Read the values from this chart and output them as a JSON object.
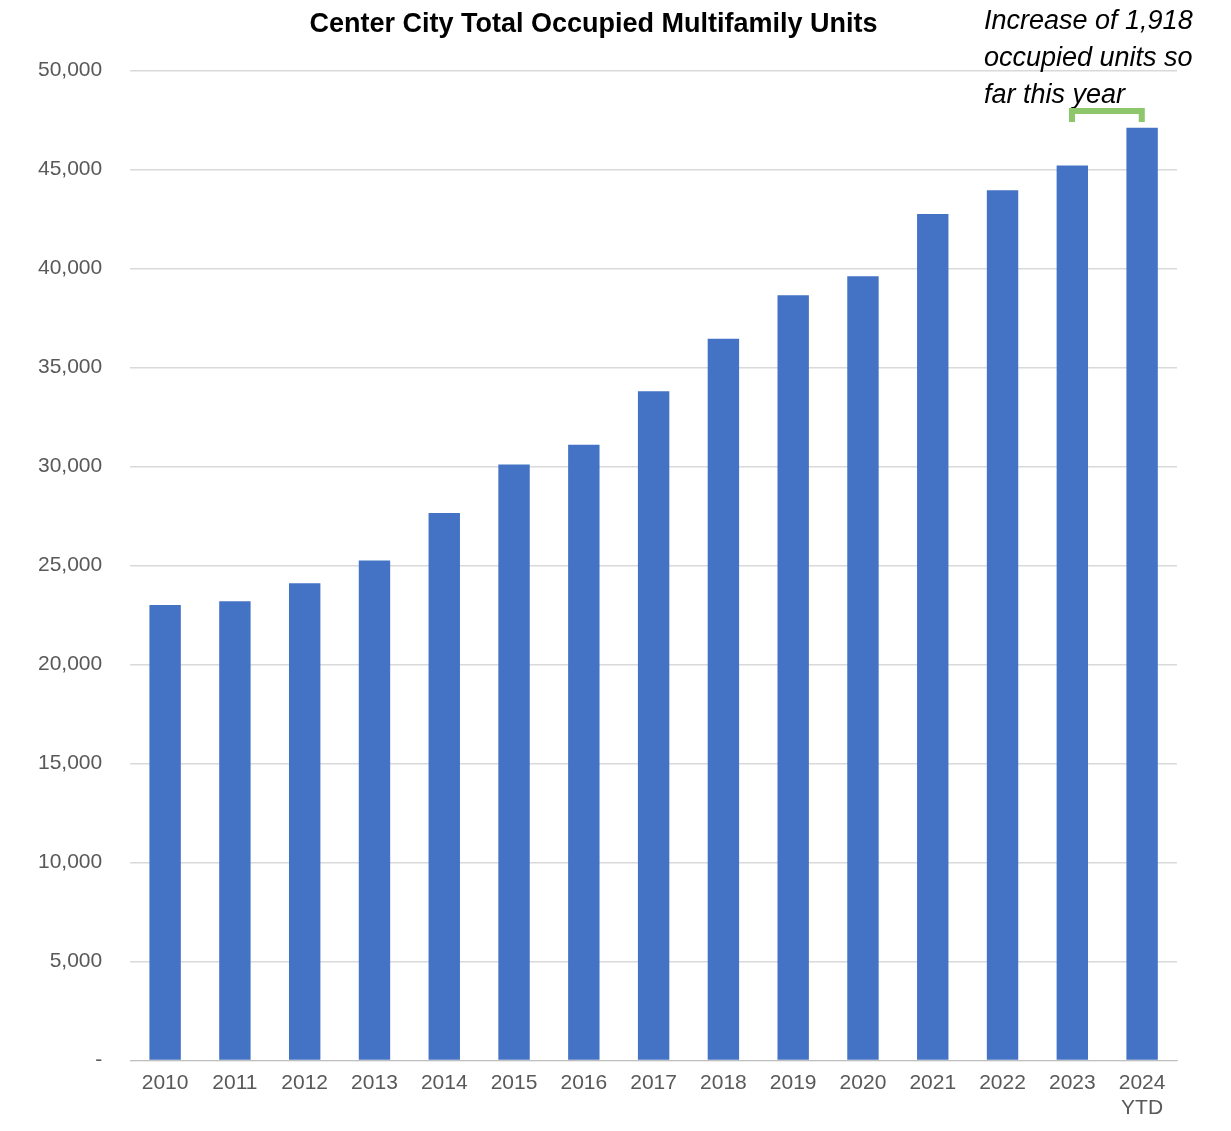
{
  "chart_data": {
    "type": "bar",
    "title": "Center City Total Occupied Multifamily Units",
    "categories": [
      "2010",
      "2011",
      "2012",
      "2013",
      "2014",
      "2015",
      "2016",
      "2017",
      "2018",
      "2019",
      "2020",
      "2021",
      "2022",
      "2023",
      "2024 YTD"
    ],
    "values": [
      23000,
      23200,
      24100,
      25250,
      27650,
      30100,
      31100,
      33800,
      36450,
      38650,
      39600,
      42750,
      43950,
      45200,
      47100
    ],
    "color": "#4472c4",
    "ylim": [
      0,
      50000
    ],
    "yticks": [
      {
        "value": 0,
        "label": "-"
      },
      {
        "value": 5000,
        "label": "5,000"
      },
      {
        "value": 10000,
        "label": "10,000"
      },
      {
        "value": 15000,
        "label": "15,000"
      },
      {
        "value": 20000,
        "label": "20,000"
      },
      {
        "value": 25000,
        "label": "25,000"
      },
      {
        "value": 30000,
        "label": "30,000"
      },
      {
        "value": 35000,
        "label": "35,000"
      },
      {
        "value": 40000,
        "label": "40,000"
      },
      {
        "value": 45000,
        "label": "45,000"
      },
      {
        "value": 50000,
        "label": "50,000"
      }
    ],
    "grid": "y",
    "annotations": [
      "Increase of 1,918 occupied units so far this year"
    ]
  }
}
